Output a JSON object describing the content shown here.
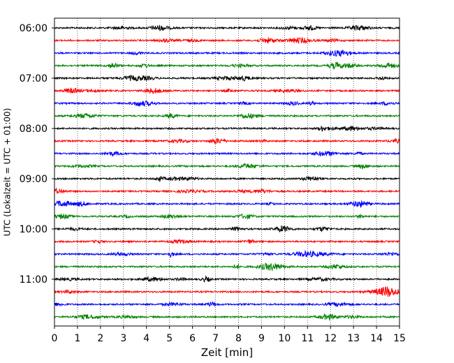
{
  "chart_data": {
    "type": "line",
    "xlabel": "Zeit  [min]",
    "ylabel": "UTC (Lokalzeit = UTC + 01:00)",
    "xlim": [
      0,
      15
    ],
    "x_ticks": [
      "0",
      "1",
      "2",
      "3",
      "4",
      "5",
      "6",
      "7",
      "8",
      "9",
      "10",
      "11",
      "12",
      "13",
      "14",
      "15"
    ],
    "y_ticks": [
      "06:00",
      "07:00",
      "08:00",
      "09:00",
      "10:00",
      "11:00"
    ],
    "grid": "vertical dotted",
    "trace_interval_minutes": 15,
    "trace_start": "06:00",
    "trace_end": "11:45",
    "trace_count": 24,
    "trace_colors": [
      "#000000",
      "#ff0000",
      "#0000ff",
      "#008000"
    ]
  }
}
